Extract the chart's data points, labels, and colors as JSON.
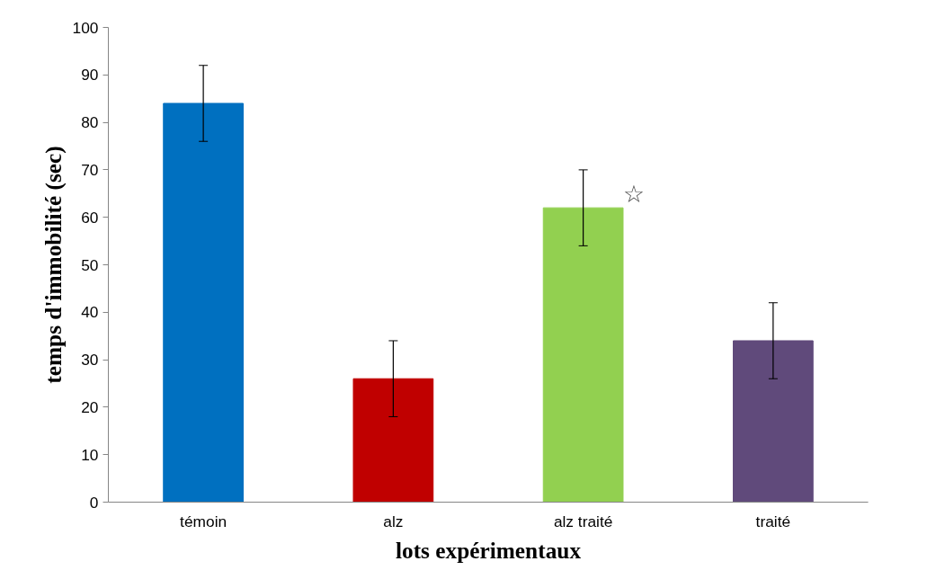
{
  "chart_data": {
    "type": "bar",
    "xlabel": "lots expérimentaux",
    "ylabel": "temps d'immobilité (sec)",
    "categories": [
      "témoin",
      "alz",
      "alz traité",
      "traité"
    ],
    "values": [
      84,
      26,
      62,
      34
    ],
    "errors": [
      8,
      8,
      8,
      8
    ],
    "colors": [
      "#0070c0",
      "#c00000",
      "#92d050",
      "#604a7b"
    ],
    "ylim": [
      0,
      100
    ],
    "yticks": [
      0,
      10,
      20,
      30,
      40,
      50,
      60,
      70,
      80,
      90,
      100
    ],
    "grid": false,
    "annotations": [
      {
        "text": "☆",
        "x": "alz traité",
        "y": 65
      }
    ]
  }
}
